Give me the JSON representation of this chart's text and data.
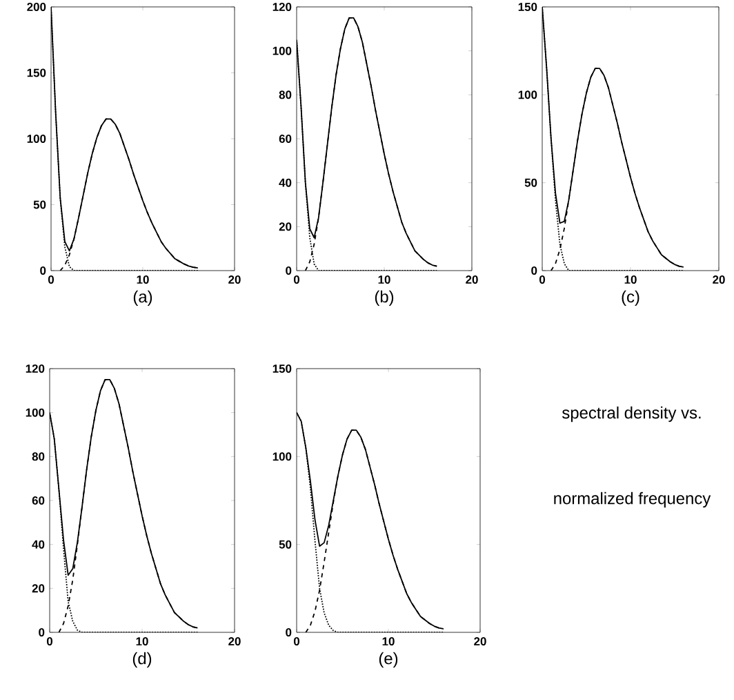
{
  "chart_data": [
    {
      "type": "line",
      "xlabel": "(a)",
      "x": [
        0,
        0.5,
        1,
        1.5,
        2,
        2.5,
        3,
        3.5,
        4,
        4.5,
        5,
        5.5,
        6,
        6.5,
        7,
        7.5,
        8,
        8.5,
        9,
        9.5,
        10,
        10.5,
        11,
        11.5,
        12,
        12.5,
        13,
        13.5,
        14,
        14.5,
        15,
        15.5,
        16
      ],
      "xlim": [
        0,
        20
      ],
      "xticks": [
        0,
        10,
        20
      ],
      "ylim": [
        0,
        200
      ],
      "yticks": [
        0,
        50,
        100,
        150,
        200
      ],
      "marker": "none",
      "series": [
        {
          "color": "#000000",
          "line_style": "solid",
          "values": [
            200,
            120,
            55,
            22,
            15,
            24,
            40,
            57,
            74,
            89,
            101,
            110,
            115,
            115,
            111,
            104,
            94,
            84,
            73,
            63,
            53,
            44,
            36,
            29,
            22,
            17,
            13,
            9,
            7,
            5,
            3.5,
            2.5,
            2
          ]
        },
        {
          "color": "#000000",
          "line_style": "dotted",
          "values": [
            200,
            120,
            55,
            18,
            3,
            0,
            0,
            0,
            0,
            0,
            0,
            0,
            0,
            0,
            0,
            0,
            0,
            0,
            0,
            0,
            0,
            0,
            0,
            0,
            0,
            0,
            0,
            0,
            0,
            0,
            0,
            0,
            0
          ]
        },
        {
          "color": "#000000",
          "line_style": "dashed",
          "values": [
            null,
            null,
            0,
            4,
            12,
            24,
            40,
            57,
            74,
            89,
            101,
            110,
            115,
            115,
            111,
            104,
            94,
            84,
            73,
            63,
            53,
            44,
            36,
            29,
            22,
            17,
            13,
            9,
            7,
            5,
            3.5,
            2.5,
            2
          ]
        }
      ]
    },
    {
      "type": "line",
      "xlabel": "(b)",
      "x": [
        0,
        0.5,
        1,
        1.5,
        2,
        2.5,
        3,
        3.5,
        4,
        4.5,
        5,
        5.5,
        6,
        6.5,
        7,
        7.5,
        8,
        8.5,
        9,
        9.5,
        10,
        10.5,
        11,
        11.5,
        12,
        12.5,
        13,
        13.5,
        14,
        14.5,
        15,
        15.5,
        16
      ],
      "xlim": [
        0,
        20
      ],
      "xticks": [
        0,
        10,
        20
      ],
      "ylim": [
        0,
        120
      ],
      "yticks": [
        0,
        20,
        40,
        60,
        80,
        100,
        120
      ],
      "marker": "none",
      "series": [
        {
          "color": "#000000",
          "line_style": "solid",
          "values": [
            105,
            75,
            40,
            19,
            15,
            24,
            40,
            57,
            74,
            89,
            101,
            110,
            115,
            115,
            111,
            104,
            94,
            84,
            73,
            63,
            53,
            44,
            36,
            29,
            22,
            17,
            13,
            9,
            7,
            5,
            3.5,
            2.5,
            2
          ]
        },
        {
          "color": "#000000",
          "line_style": "dotted",
          "values": [
            105,
            75,
            40,
            15,
            3,
            0,
            0,
            0,
            0,
            0,
            0,
            0,
            0,
            0,
            0,
            0,
            0,
            0,
            0,
            0,
            0,
            0,
            0,
            0,
            0,
            0,
            0,
            0,
            0,
            0,
            0,
            0,
            0
          ]
        },
        {
          "color": "#000000",
          "line_style": "dashed",
          "values": [
            null,
            null,
            0,
            4,
            12,
            24,
            40,
            57,
            74,
            89,
            101,
            110,
            115,
            115,
            111,
            104,
            94,
            84,
            73,
            63,
            53,
            44,
            36,
            29,
            22,
            17,
            13,
            9,
            7,
            5,
            3.5,
            2.5,
            2
          ]
        }
      ]
    },
    {
      "type": "line",
      "xlabel": "(c)",
      "x": [
        0,
        0.5,
        1,
        1.5,
        2,
        2.5,
        3,
        3.5,
        4,
        4.5,
        5,
        5.5,
        6,
        6.5,
        7,
        7.5,
        8,
        8.5,
        9,
        9.5,
        10,
        10.5,
        11,
        11.5,
        12,
        12.5,
        13,
        13.5,
        14,
        14.5,
        15,
        15.5,
        16
      ],
      "xlim": [
        0,
        20
      ],
      "xticks": [
        0,
        10,
        20
      ],
      "ylim": [
        0,
        150
      ],
      "yticks": [
        0,
        50,
        100,
        150
      ],
      "marker": "none",
      "series": [
        {
          "color": "#000000",
          "line_style": "solid",
          "values": [
            150,
            115,
            75,
            44,
            27,
            28,
            40,
            57,
            74,
            89,
            101,
            110,
            115,
            115,
            111,
            104,
            94,
            84,
            73,
            63,
            53,
            44,
            36,
            29,
            22,
            17,
            13,
            9,
            7,
            5,
            3.5,
            2.5,
            2
          ]
        },
        {
          "color": "#000000",
          "line_style": "dotted",
          "values": [
            150,
            115,
            75,
            40,
            15,
            4,
            0,
            0,
            0,
            0,
            0,
            0,
            0,
            0,
            0,
            0,
            0,
            0,
            0,
            0,
            0,
            0,
            0,
            0,
            0,
            0,
            0,
            0,
            0,
            0,
            0,
            0,
            0
          ]
        },
        {
          "color": "#000000",
          "line_style": "dashed",
          "values": [
            null,
            null,
            0,
            4,
            12,
            24,
            40,
            57,
            74,
            89,
            101,
            110,
            115,
            115,
            111,
            104,
            94,
            84,
            73,
            63,
            53,
            44,
            36,
            29,
            22,
            17,
            13,
            9,
            7,
            5,
            3.5,
            2.5,
            2
          ]
        }
      ]
    },
    {
      "type": "line",
      "xlabel": "(d)",
      "x": [
        0,
        0.5,
        1,
        1.5,
        2,
        2.5,
        3,
        3.5,
        4,
        4.5,
        5,
        5.5,
        6,
        6.5,
        7,
        7.5,
        8,
        8.5,
        9,
        9.5,
        10,
        10.5,
        11,
        11.5,
        12,
        12.5,
        13,
        13.5,
        14,
        14.5,
        15,
        15.5,
        16
      ],
      "xlim": [
        0,
        20
      ],
      "xticks": [
        0,
        10,
        20
      ],
      "ylim": [
        0,
        120
      ],
      "yticks": [
        0,
        20,
        40,
        60,
        80,
        100,
        120
      ],
      "marker": "none",
      "series": [
        {
          "color": "#000000",
          "line_style": "solid",
          "values": [
            100,
            88,
            65,
            42,
            26,
            29,
            41,
            57,
            74,
            89,
            101,
            110,
            115,
            115,
            111,
            104,
            94,
            84,
            73,
            63,
            53,
            44,
            36,
            29,
            22,
            17,
            13,
            9,
            7,
            5,
            3.5,
            2.5,
            2
          ]
        },
        {
          "color": "#000000",
          "line_style": "dotted",
          "values": [
            100,
            88,
            65,
            38,
            14,
            5,
            1,
            0,
            0,
            0,
            0,
            0,
            0,
            0,
            0,
            0,
            0,
            0,
            0,
            0,
            0,
            0,
            0,
            0,
            0,
            0,
            0,
            0,
            0,
            0,
            0,
            0,
            0
          ]
        },
        {
          "color": "#000000",
          "line_style": "dashed",
          "values": [
            null,
            null,
            0,
            4,
            12,
            24,
            40,
            57,
            74,
            89,
            101,
            110,
            115,
            115,
            111,
            104,
            94,
            84,
            73,
            63,
            53,
            44,
            36,
            29,
            22,
            17,
            13,
            9,
            7,
            5,
            3.5,
            2.5,
            2
          ]
        }
      ]
    },
    {
      "type": "line",
      "xlabel": "(e)",
      "x": [
        0,
        0.5,
        1,
        1.5,
        2,
        2.5,
        3,
        3.5,
        4,
        4.5,
        5,
        5.5,
        6,
        6.5,
        7,
        7.5,
        8,
        8.5,
        9,
        9.5,
        10,
        10.5,
        11,
        11.5,
        12,
        12.5,
        13,
        13.5,
        14,
        14.5,
        15,
        15.5,
        16
      ],
      "xlim": [
        0,
        20
      ],
      "xticks": [
        0,
        10,
        20
      ],
      "ylim": [
        0,
        150
      ],
      "yticks": [
        0,
        50,
        100,
        150
      ],
      "marker": "none",
      "series": [
        {
          "color": "#000000",
          "line_style": "solid",
          "values": [
            125,
            120,
            105,
            86,
            64,
            49,
            51,
            61,
            75,
            89,
            101,
            110,
            115,
            115,
            111,
            104,
            94,
            84,
            73,
            63,
            53,
            44,
            36,
            29,
            22,
            17,
            13,
            9,
            7,
            5,
            3.5,
            2.5,
            2
          ]
        },
        {
          "color": "#000000",
          "line_style": "dotted",
          "values": [
            125,
            120,
            105,
            82,
            52,
            25,
            11,
            4,
            1,
            0,
            0,
            0,
            0,
            0,
            0,
            0,
            0,
            0,
            0,
            0,
            0,
            0,
            0,
            0,
            0,
            0,
            0,
            0,
            0,
            0,
            0,
            0,
            0
          ]
        },
        {
          "color": "#000000",
          "line_style": "dashed",
          "values": [
            null,
            null,
            0,
            4,
            12,
            24,
            40,
            57,
            74,
            89,
            101,
            110,
            115,
            115,
            111,
            104,
            94,
            84,
            73,
            63,
            53,
            44,
            36,
            29,
            22,
            17,
            13,
            9,
            7,
            5,
            3.5,
            2.5,
            2
          ]
        }
      ]
    },
    {
      "type": "other",
      "annotations": [
        "spectral density vs.",
        "normalized frequency"
      ]
    }
  ]
}
